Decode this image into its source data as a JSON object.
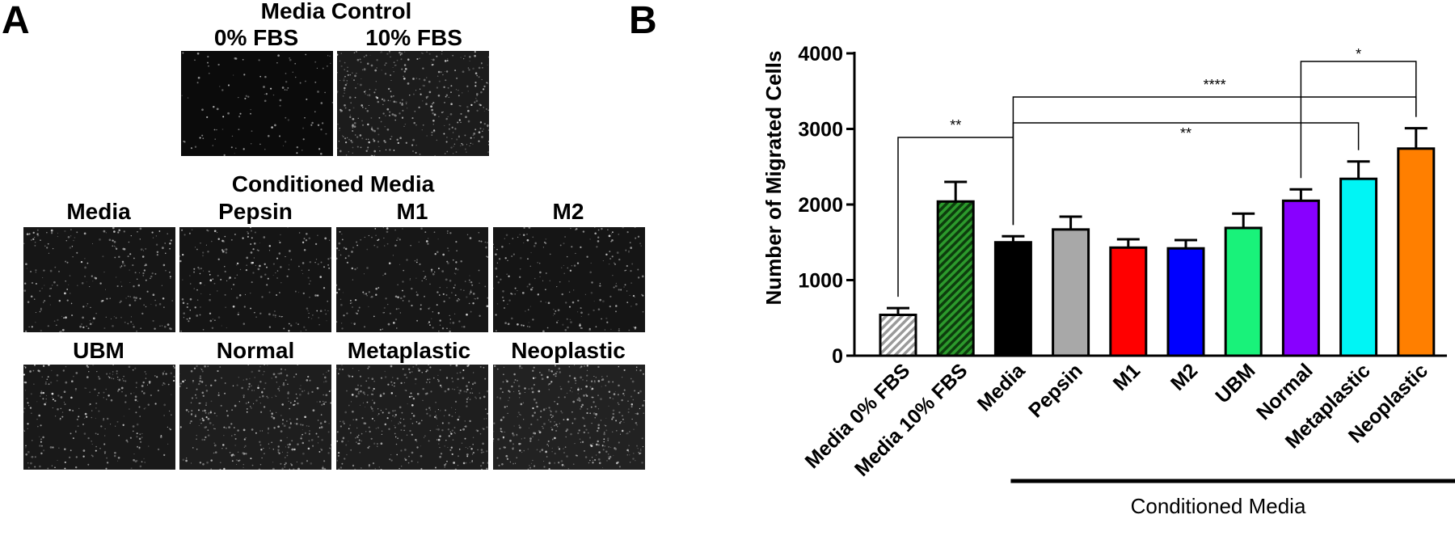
{
  "panel_a": {
    "letter": "A",
    "control_title": "Media Control",
    "control_labels": [
      "0% FBS",
      "10% FBS"
    ],
    "conditioned_title": "Conditioned Media",
    "row1_labels": [
      "Media",
      "Pepsin",
      "M1",
      "M2"
    ],
    "row2_labels": [
      "UBM",
      "Normal",
      "Metaplastic",
      "Neoplastic"
    ]
  },
  "panel_b": {
    "letter": "B"
  },
  "chart_data": {
    "type": "bar",
    "ylabel": "Number of Migrated Cells",
    "ylim": [
      0,
      4000
    ],
    "yticks": [
      0,
      1000,
      2000,
      3000,
      4000
    ],
    "categories": [
      "Media 0% FBS",
      "Media 10% FBS",
      "Media",
      "Pepsin",
      "M1",
      "M2",
      "UBM",
      "Normal",
      "Metaplastic",
      "Neoplastic"
    ],
    "values": [
      540,
      2040,
      1500,
      1670,
      1430,
      1420,
      1690,
      2050,
      2340,
      2740
    ],
    "errors": [
      90,
      260,
      80,
      170,
      110,
      110,
      190,
      150,
      230,
      270
    ],
    "colors": [
      "#bbbbbb",
      "#1f7a1f",
      "#000000",
      "#a8a8a8",
      "#ff0000",
      "#0000ff",
      "#19f27a",
      "#8800ff",
      "#00f5f5",
      "#ff7f00"
    ],
    "hatched": [
      true,
      true,
      false,
      false,
      false,
      false,
      false,
      false,
      false,
      false
    ],
    "group_label": "Conditioned Media",
    "group_start": "Media",
    "group_end": "Neoplastic",
    "significance": [
      {
        "from": "Media 0% FBS",
        "to": "Media",
        "stars": "**"
      },
      {
        "from": "Media",
        "to": "Neoplastic",
        "stars": "****"
      },
      {
        "from": "Media",
        "to": "Metaplastic",
        "stars": "**"
      },
      {
        "from": "Normal",
        "to": "Neoplastic",
        "stars": "*"
      }
    ]
  }
}
